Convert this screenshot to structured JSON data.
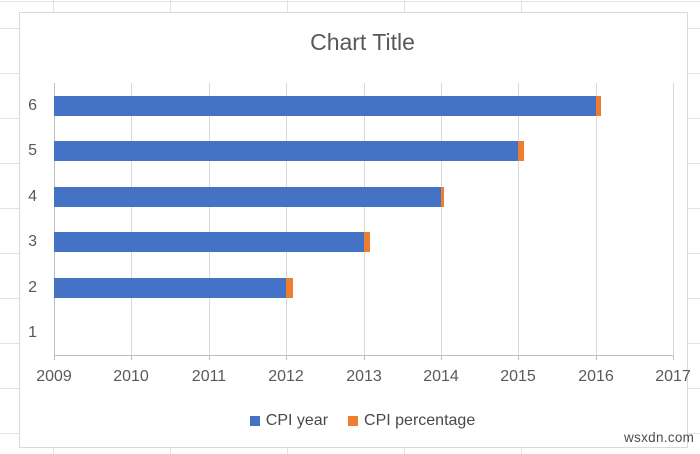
{
  "watermark": {
    "text": "wsxdn.com"
  },
  "chart_data": {
    "type": "bar",
    "orientation": "horizontal",
    "stacked": true,
    "title": "Chart Title",
    "categories": [
      "1",
      "2",
      "3",
      "4",
      "5",
      "6"
    ],
    "category_order": "bottom-to-top",
    "series": [
      {
        "name": "CPI year",
        "color": "#4472C4",
        "values": [
          2009,
          2012,
          2013,
          2014,
          2015,
          2016
        ]
      },
      {
        "name": "CPI percentage",
        "color": "#ED7D31",
        "values": [
          0,
          0.09,
          0.08,
          0.04,
          0.08,
          0.06
        ]
      }
    ],
    "x_axis": {
      "min": 2009,
      "max": 2017,
      "ticks": [
        "2009",
        "2010",
        "2011",
        "2012",
        "2013",
        "2014",
        "2015",
        "2016",
        "2017"
      ]
    },
    "legend_position": "bottom",
    "grid": true,
    "colors": {
      "plot_gridline": "#D9D9D9",
      "axis_line": "#BFBFBF",
      "label_text": "#595959",
      "legend_text": "#494949",
      "chart_border": "#D9D9D9",
      "worksheet_gridline": "#E2E2E2"
    }
  }
}
